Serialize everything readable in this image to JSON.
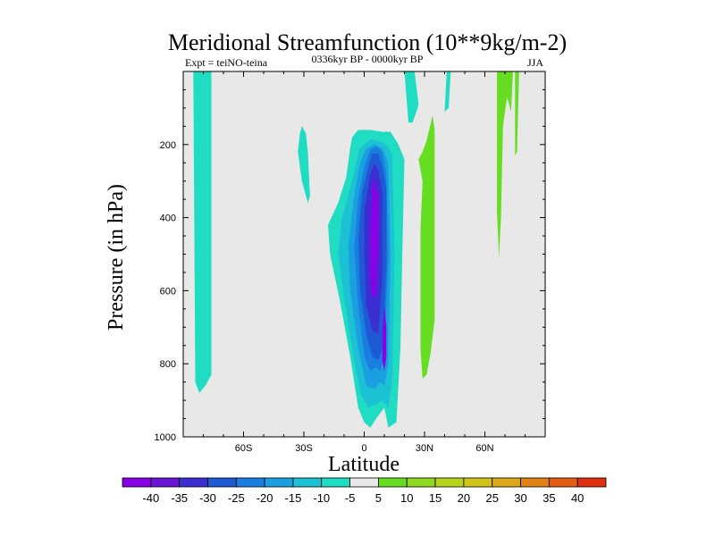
{
  "chart_data": {
    "type": "heatmap",
    "title": "Meridional Streamfunction (10**9kg/m-2)",
    "subtitle_left": "Expt = teiNO-teina",
    "subtitle_center": "0336kyr BP - 0000kyr BP",
    "subtitle_right": "JJA",
    "xlabel": "Latitude",
    "ylabel": "Pressure (in hPa)",
    "xlim": [
      -90,
      90
    ],
    "ylim": [
      0,
      1000
    ],
    "x_ticks": [
      {
        "value": -60,
        "label": "60S"
      },
      {
        "value": -30,
        "label": "30S"
      },
      {
        "value": 0,
        "label": "0"
      },
      {
        "value": 30,
        "label": "30N"
      },
      {
        "value": 60,
        "label": "60N"
      }
    ],
    "y_ticks": [
      {
        "value": 200,
        "label": "200"
      },
      {
        "value": 400,
        "label": "400"
      },
      {
        "value": 600,
        "label": "600"
      },
      {
        "value": 800,
        "label": "800"
      },
      {
        "value": 1000,
        "label": "1000"
      }
    ],
    "background_color": "#e8e8e8",
    "colorbar": {
      "labels": [
        "-40",
        "-35",
        "-30",
        "-25",
        "-20",
        "-15",
        "-10",
        "-5",
        "5",
        "10",
        "15",
        "20",
        "25",
        "30",
        "35",
        "40"
      ],
      "colors": [
        "#8a00e6",
        "#6a14d8",
        "#3c2fd2",
        "#1e5ad6",
        "#1a7ee0",
        "#1aa0e0",
        "#1cc2d4",
        "#1fdcc2",
        "#e8e8e8",
        "#66dd22",
        "#8ed820",
        "#b4d41c",
        "#d0c41a",
        "#dca818",
        "#e08216",
        "#e45c12",
        "#e03010"
      ]
    },
    "regions": [
      {
        "name": "sh-polar-band",
        "level": "-5",
        "lat": [
          -85,
          -83,
          -79,
          -76,
          -76,
          -79,
          -82,
          -84,
          -85
        ],
        "p": [
          0,
          0,
          0,
          0,
          830,
          860,
          880,
          850,
          0
        ]
      },
      {
        "name": "sh-blob",
        "level": "-5",
        "lat": [
          -31,
          -29,
          -28,
          -27,
          -28,
          -31,
          -33,
          -32,
          -31
        ],
        "p": [
          150,
          170,
          220,
          340,
          360,
          300,
          220,
          170,
          150
        ]
      },
      {
        "name": "hadley-outer",
        "level": "-5",
        "lat": [
          -6,
          -3,
          3,
          9,
          13,
          16,
          17,
          20,
          19,
          18,
          16,
          12,
          10,
          6,
          3,
          0,
          -3,
          -7,
          -12,
          -17,
          -18,
          -13,
          -9,
          -7,
          -6
        ],
        "p": [
          180,
          160,
          160,
          165,
          165,
          190,
          200,
          240,
          480,
          760,
          960,
          975,
          920,
          950,
          975,
          960,
          920,
          780,
          630,
          500,
          420,
          360,
          290,
          210,
          180
        ]
      },
      {
        "name": "hadley-l2",
        "level": "-10",
        "lat": [
          -2,
          3,
          7,
          11,
          14,
          15,
          14,
          12,
          9,
          6,
          2,
          -2,
          -6,
          -10,
          -13,
          -11,
          -7,
          -4,
          -2
        ],
        "p": [
          210,
          185,
          190,
          200,
          230,
          500,
          840,
          920,
          900,
          910,
          920,
          880,
          760,
          620,
          500,
          400,
          320,
          250,
          210
        ]
      },
      {
        "name": "hadley-l3",
        "level": "-15",
        "lat": [
          1,
          5,
          9,
          12,
          13,
          12,
          10,
          8,
          5,
          1,
          -3,
          -7,
          -8,
          -5,
          -2,
          1
        ],
        "p": [
          210,
          200,
          210,
          250,
          500,
          800,
          860,
          850,
          870,
          860,
          760,
          600,
          480,
          340,
          250,
          210
        ]
      },
      {
        "name": "hadley-l4",
        "level": "-20",
        "lat": [
          3,
          6,
          9,
          11,
          12,
          10,
          8,
          6,
          3,
          0,
          -3,
          -5,
          -3,
          0,
          3
        ],
        "p": [
          215,
          205,
          220,
          280,
          500,
          780,
          820,
          810,
          820,
          780,
          640,
          480,
          350,
          260,
          215
        ]
      },
      {
        "name": "hadley-l5",
        "level": "-25",
        "lat": [
          4,
          7,
          9,
          11,
          11,
          9,
          7,
          4,
          1,
          -2,
          -3,
          -1,
          2,
          4
        ],
        "p": [
          225,
          225,
          260,
          320,
          540,
          760,
          790,
          780,
          720,
          600,
          460,
          330,
          260,
          225
        ]
      },
      {
        "name": "hadley-l6",
        "level": "-30",
        "lat": [
          5,
          7,
          9,
          9,
          7,
          4,
          1,
          0,
          0,
          3,
          5
        ],
        "p": [
          250,
          270,
          330,
          560,
          720,
          710,
          640,
          500,
          380,
          280,
          250
        ]
      },
      {
        "name": "hadley-core",
        "level": "-40",
        "lat": [
          5,
          7,
          7,
          6,
          4,
          3,
          3,
          4,
          5
        ],
        "p": [
          290,
          340,
          500,
          610,
          620,
          560,
          420,
          320,
          290
        ]
      },
      {
        "name": "hadley-core-lower",
        "level": "-40",
        "lat": [
          10,
          11,
          11,
          10,
          9,
          9,
          10
        ],
        "p": [
          640,
          700,
          780,
          820,
          790,
          720,
          640
        ]
      },
      {
        "name": "nh-trop-stripe",
        "level": "-5",
        "lat": [
          20,
          21,
          25,
          27,
          26,
          24,
          22,
          20
        ],
        "p": [
          0,
          0,
          0,
          90,
          110,
          140,
          140,
          0
        ]
      },
      {
        "name": "nh-thin-stripe",
        "level": "-5",
        "lat": [
          41,
          42,
          43,
          42,
          40,
          41
        ],
        "p": [
          0,
          0,
          0,
          100,
          110,
          0
        ]
      },
      {
        "name": "nh-positive-band",
        "level": "5",
        "lat": [
          27,
          29,
          31,
          34,
          35,
          35,
          33,
          31,
          29,
          28,
          28,
          29,
          27
        ],
        "p": [
          240,
          220,
          190,
          120,
          160,
          680,
          770,
          830,
          840,
          760,
          430,
          300,
          240
        ]
      },
      {
        "name": "nh-upper-positive",
        "level": "5",
        "lat": [
          66,
          70,
          72,
          74,
          73,
          71,
          69,
          68,
          67,
          66,
          66
        ],
        "p": [
          0,
          0,
          0,
          0,
          110,
          70,
          150,
          400,
          510,
          380,
          0
        ]
      },
      {
        "name": "nh-upper-positive-right",
        "level": "5",
        "lat": [
          75,
          77,
          76,
          75,
          75
        ],
        "p": [
          0,
          0,
          220,
          230,
          0
        ]
      }
    ]
  }
}
